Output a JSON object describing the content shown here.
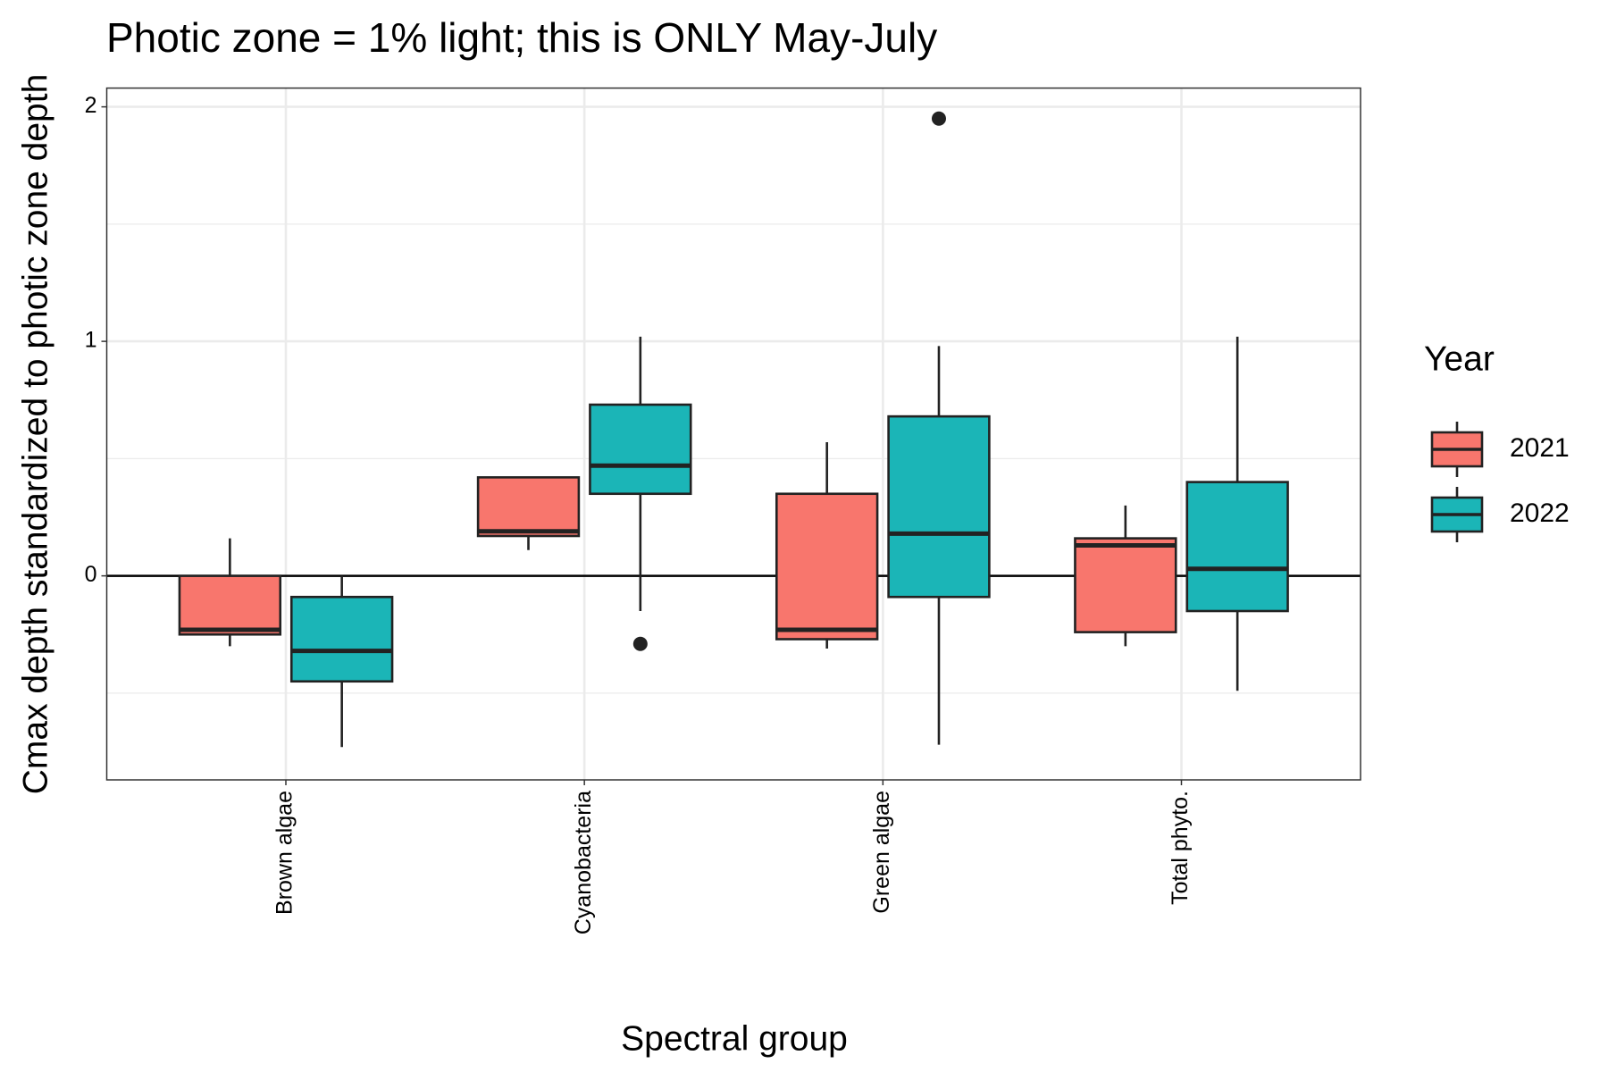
{
  "chart_data": {
    "type": "boxplot",
    "title": "Photic zone = 1% light; this is ONLY May-July",
    "x_label": "Spectral group",
    "y_label": "Cmax depth standardized to photic zone depth",
    "legend_title": "Year",
    "legend_position": "right",
    "categories": [
      "Brown algae",
      "Cyanobacteria",
      "Green algae",
      "Total phyto."
    ],
    "series": [
      {
        "name": "2021",
        "color": "#f8766d",
        "low": [
          -0.3,
          0.11,
          -0.31,
          -0.3
        ],
        "q1": [
          -0.25,
          0.17,
          -0.27,
          -0.24
        ],
        "median": [
          -0.23,
          0.19,
          -0.23,
          0.13
        ],
        "q3": [
          0.0,
          0.42,
          0.35,
          0.16
        ],
        "high": [
          0.16,
          0.42,
          0.57,
          0.3
        ],
        "outliers": [
          [],
          [],
          [],
          []
        ]
      },
      {
        "name": "2022",
        "color": "#1bb5b7",
        "low": [
          -0.73,
          -0.15,
          -0.72,
          -0.49
        ],
        "q1": [
          -0.45,
          0.35,
          -0.09,
          -0.15
        ],
        "median": [
          -0.32,
          0.47,
          0.18,
          0.03
        ],
        "q3": [
          -0.09,
          0.73,
          0.68,
          0.4
        ],
        "high": [
          0.0,
          1.02,
          0.98,
          1.02
        ],
        "outliers": [
          [],
          [
            -0.29
          ],
          [
            1.95
          ],
          []
        ]
      }
    ],
    "ylim": [
      -0.87,
      2.08
    ],
    "yticks": [
      0,
      1,
      2
    ],
    "y_minor_grid": [
      -0.5,
      0.5,
      1.5
    ],
    "hline": 0,
    "grid": true
  }
}
